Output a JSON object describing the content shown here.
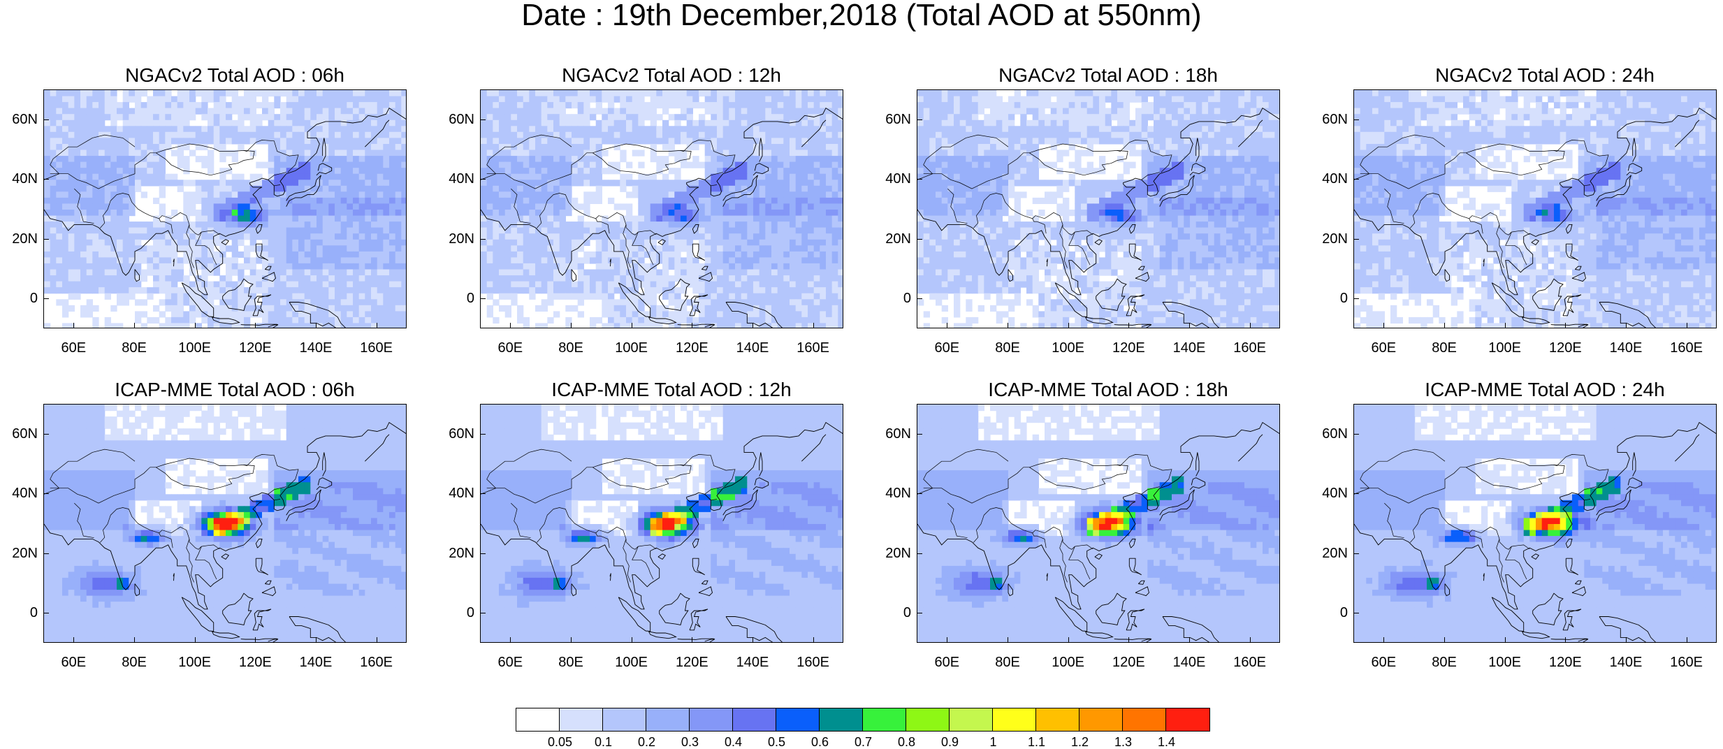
{
  "title": "Date : 19th December,2018 (Total AOD at 550nm)",
  "panels": [
    {
      "title": "NGACv2 Total AOD : 06h",
      "model": "NGACv2",
      "hour": "06h"
    },
    {
      "title": "NGACv2 Total AOD : 12h",
      "model": "NGACv2",
      "hour": "12h"
    },
    {
      "title": "NGACv2 Total AOD : 18h",
      "model": "NGACv2",
      "hour": "18h"
    },
    {
      "title": "NGACv2 Total AOD : 24h",
      "model": "NGACv2",
      "hour": "24h"
    },
    {
      "title": "ICAP-MME Total AOD : 06h",
      "model": "ICAP-MME",
      "hour": "06h"
    },
    {
      "title": "ICAP-MME Total AOD : 12h",
      "model": "ICAP-MME",
      "hour": "12h"
    },
    {
      "title": "ICAP-MME Total AOD : 18h",
      "model": "ICAP-MME",
      "hour": "18h"
    },
    {
      "title": "ICAP-MME Total AOD : 24h",
      "model": "ICAP-MME",
      "hour": "24h"
    }
  ],
  "axes": {
    "lat_ticks": [
      "60N",
      "40N",
      "20N",
      "0"
    ],
    "lon_ticks": [
      "60E",
      "80E",
      "100E",
      "120E",
      "140E",
      "160E"
    ]
  },
  "colorbar": {
    "labels": [
      "0.05",
      "0.1",
      "0.2",
      "0.3",
      "0.4",
      "0.5",
      "0.6",
      "0.7",
      "0.8",
      "0.9",
      "1",
      "1.1",
      "1.2",
      "1.3",
      "1.4"
    ],
    "colors": [
      "#ffffff",
      "#d6e0fd",
      "#b4c6fc",
      "#98b0fa",
      "#8497f7",
      "#6773f2",
      "#0a5ffb",
      "#008f8f",
      "#37f13b",
      "#8ef715",
      "#c4f74e",
      "#ffff1a",
      "#ffc000",
      "#ff9800",
      "#ff7400",
      "#ff1f10"
    ]
  }
}
